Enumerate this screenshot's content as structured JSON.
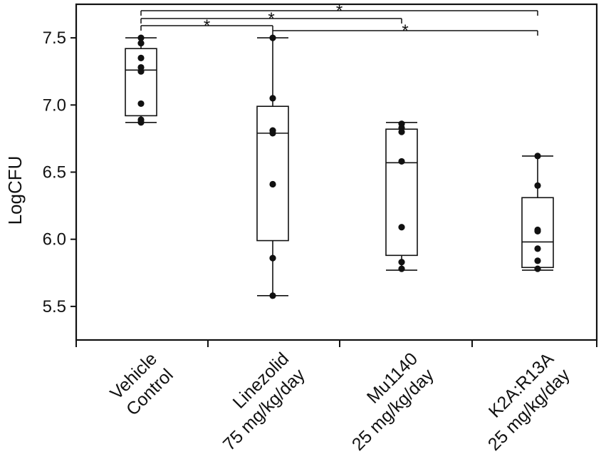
{
  "chart_data": {
    "type": "box",
    "title": "",
    "xlabel": "",
    "ylabel": "LogCFU",
    "ylim": [
      5.25,
      7.75
    ],
    "yticks": [
      5.5,
      6.0,
      6.5,
      7.0,
      7.5
    ],
    "grid": false,
    "legend": "none",
    "colors": {
      "stroke": "#111111",
      "box_fill": "#ffffff",
      "point": "#111111"
    },
    "categories": [
      {
        "lines": [
          "Vehicle",
          "Control"
        ]
      },
      {
        "lines": [
          "Linezolid",
          "75 mg/kg/day"
        ]
      },
      {
        "lines": [
          "Mu1140",
          "25 mg/kg/day"
        ]
      },
      {
        "lines": [
          "K2A:R13A",
          "25 mg/kg/day"
        ]
      }
    ],
    "boxes": [
      {
        "whisker_low": 6.87,
        "q1": 6.92,
        "median": 7.26,
        "q3": 7.42,
        "whisker_high": 7.5,
        "points": [
          7.5,
          7.46,
          7.35,
          7.28,
          7.25,
          7.01,
          6.89,
          6.87
        ]
      },
      {
        "whisker_low": 5.58,
        "q1": 5.99,
        "median": 6.79,
        "q3": 6.99,
        "whisker_high": 7.5,
        "points": [
          7.5,
          7.05,
          6.81,
          6.79,
          6.41,
          5.86,
          5.58
        ]
      },
      {
        "whisker_low": 5.77,
        "q1": 5.88,
        "median": 6.57,
        "q3": 6.82,
        "whisker_high": 6.87,
        "points": [
          6.86,
          6.83,
          6.8,
          6.58,
          6.09,
          5.83,
          5.78
        ]
      },
      {
        "whisker_low": 5.77,
        "q1": 5.79,
        "median": 5.98,
        "q3": 6.31,
        "whisker_high": 6.62,
        "points": [
          6.62,
          6.4,
          6.07,
          6.06,
          5.93,
          5.84,
          5.78
        ]
      }
    ],
    "significance": [
      {
        "from": 0,
        "to": 1,
        "label": "*"
      },
      {
        "from": 0,
        "to": 2,
        "label": "*"
      },
      {
        "from": 0,
        "to": 3,
        "label": "*"
      },
      {
        "from": 1,
        "to": 3,
        "label": "*"
      }
    ]
  }
}
